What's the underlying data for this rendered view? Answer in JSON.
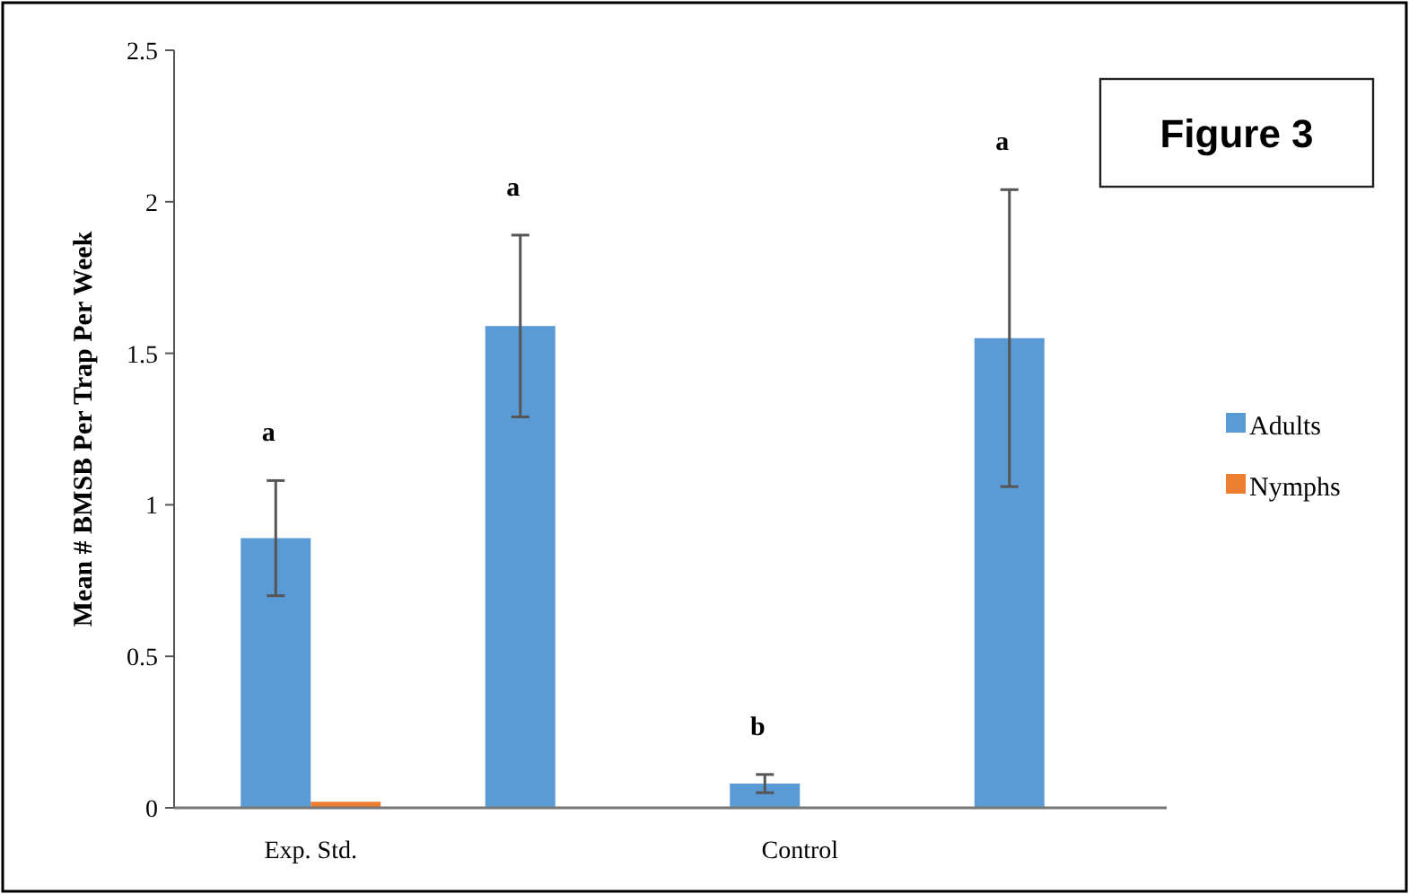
{
  "chart_data": {
    "type": "bar",
    "title": "Figure 3",
    "ylabel": "Mean # BMSB Per Trap Per Week",
    "categories": [
      "Exp. Std.",
      null,
      "Control",
      null
    ],
    "series": [
      {
        "name": "Adults",
        "color": "#5b9bd5",
        "values": [
          0.89,
          1.59,
          0.08,
          1.55
        ],
        "errors": [
          0.19,
          0.3,
          0.03,
          0.49
        ]
      },
      {
        "name": "Nymphs",
        "color": "#ed7d31",
        "values": [
          0.02,
          null,
          null,
          null
        ]
      }
    ],
    "annotations": [
      "a",
      "a",
      "b",
      "a"
    ],
    "ylim": [
      0,
      2.5
    ],
    "yticks": [
      0,
      0.5,
      1,
      1.5,
      2,
      2.5
    ],
    "grid": false,
    "legend": "right"
  }
}
